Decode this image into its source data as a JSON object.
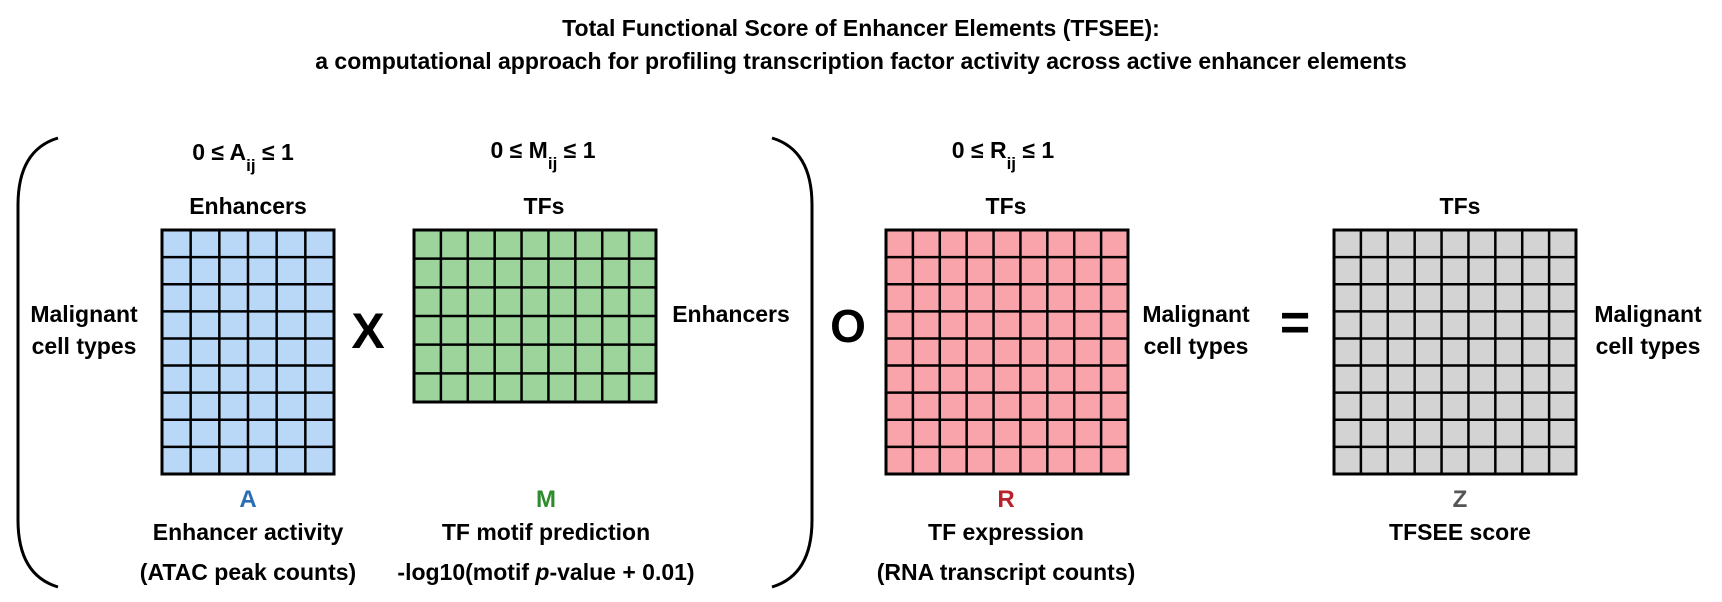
{
  "title": {
    "line1": "Total Functional Score of Enhancer Elements (TFSEE):",
    "line2": "a computational approach for profiling transcription factor activity across active enhancer elements"
  },
  "constraints": {
    "a": {
      "prefix": "0 ≤ A",
      "sub": "ij",
      "suffix": " ≤ 1"
    },
    "m": {
      "prefix": "0 ≤ M",
      "sub": "ij",
      "suffix": " ≤ 1"
    },
    "r": {
      "prefix": "0 ≤ R",
      "sub": "ij",
      "suffix": " ≤ 1"
    }
  },
  "operators": {
    "multiply": "X",
    "hadamard": "O",
    "equals": "="
  },
  "matrices": {
    "a": {
      "top_label": "Enhancers",
      "side_label_lines": [
        "Malignant",
        "cell types"
      ],
      "letter": "A",
      "caption1": "Enhancer activity",
      "caption2": "(ATAC peak counts)",
      "rows": 9,
      "cols": 6,
      "fill": "#b9d8f7",
      "letter_color": "#2a6db5"
    },
    "m": {
      "top_label": "TFs",
      "side_label": "Enhancers",
      "letter": "M",
      "caption1": "TF motif prediction",
      "caption2_pre": "-log10(motif ",
      "caption2_italic": "p",
      "caption2_post": "-value + 0.01)",
      "rows": 6,
      "cols": 9,
      "fill": "#9cd49b",
      "letter_color": "#2e8b2e"
    },
    "r": {
      "top_label": "TFs",
      "side_label_lines": [
        "Malignant",
        "cell types"
      ],
      "letter": "R",
      "caption1": "TF expression",
      "caption2": "(RNA transcript counts)",
      "rows": 9,
      "cols": 9,
      "fill": "#f9a3aa",
      "letter_color": "#b8222b"
    },
    "z": {
      "top_label": "TFs",
      "side_label_lines": [
        "Malignant",
        "cell types"
      ],
      "letter": "Z",
      "caption1": "TFSEE score",
      "rows": 9,
      "cols": 9,
      "fill": "#d3d3d3",
      "letter_color": "#555555"
    }
  }
}
